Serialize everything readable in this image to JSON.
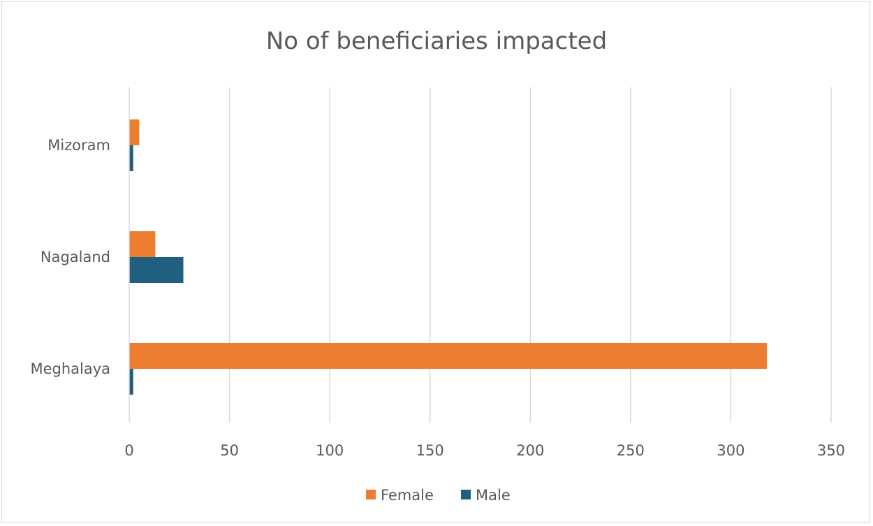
{
  "chart_data": {
    "type": "bar",
    "orientation": "horizontal",
    "title": "No of beneficiaries impacted",
    "categories": [
      "Mizoram",
      "Nagaland",
      "Meghalaya"
    ],
    "series": [
      {
        "name": "Female",
        "color": "#ED7D31",
        "values": [
          5,
          13,
          318
        ]
      },
      {
        "name": "Male",
        "color": "#1F5F7F",
        "values": [
          2,
          27,
          2
        ]
      }
    ],
    "xlim": [
      0,
      350
    ],
    "xticks": [
      "0",
      "50",
      "100",
      "150",
      "200",
      "250",
      "300",
      "350"
    ],
    "grid": "vertical",
    "legend_position": "bottom"
  }
}
